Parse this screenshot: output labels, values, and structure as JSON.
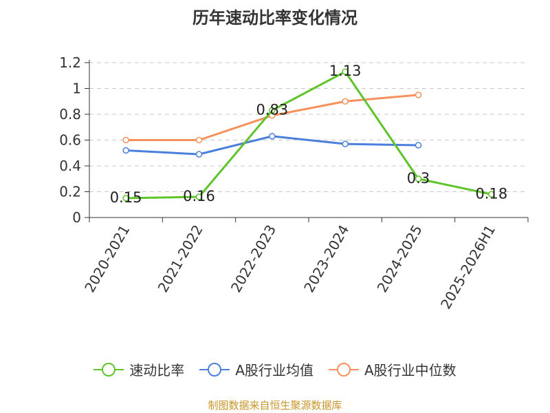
{
  "title": "历年速动比率变化情况",
  "source": "制图数据来自恒生聚源数据库",
  "chart_data": {
    "type": "line",
    "categories": [
      "2020-2021",
      "2021-2022",
      "2022-2023",
      "2023-2024",
      "2024-2025",
      "2025-2026H1"
    ],
    "ylim": [
      0,
      1.2
    ],
    "yticks": [
      0,
      0.2,
      0.4,
      0.6,
      0.8,
      1,
      1.2
    ],
    "ytick_labels": [
      "0",
      "0.2",
      "0.4",
      "0.6",
      "0.8",
      "1",
      "1.2"
    ],
    "grid": true,
    "legend_position": "bottom",
    "series": [
      {
        "name": "速动比率",
        "color": "#5ec42a",
        "values": [
          0.15,
          0.16,
          0.83,
          1.13,
          0.3,
          0.18
        ],
        "labels": [
          "0.15",
          "0.16",
          "0.83",
          "1.13",
          "0.3",
          "0.18"
        ]
      },
      {
        "name": "A股行业均值",
        "color": "#4a7fdc",
        "values": [
          0.52,
          0.49,
          0.63,
          0.57,
          0.56,
          null
        ]
      },
      {
        "name": "A股行业中位数",
        "color": "#f5915c",
        "values": [
          0.6,
          0.6,
          0.79,
          0.9,
          0.95,
          null
        ]
      }
    ]
  }
}
